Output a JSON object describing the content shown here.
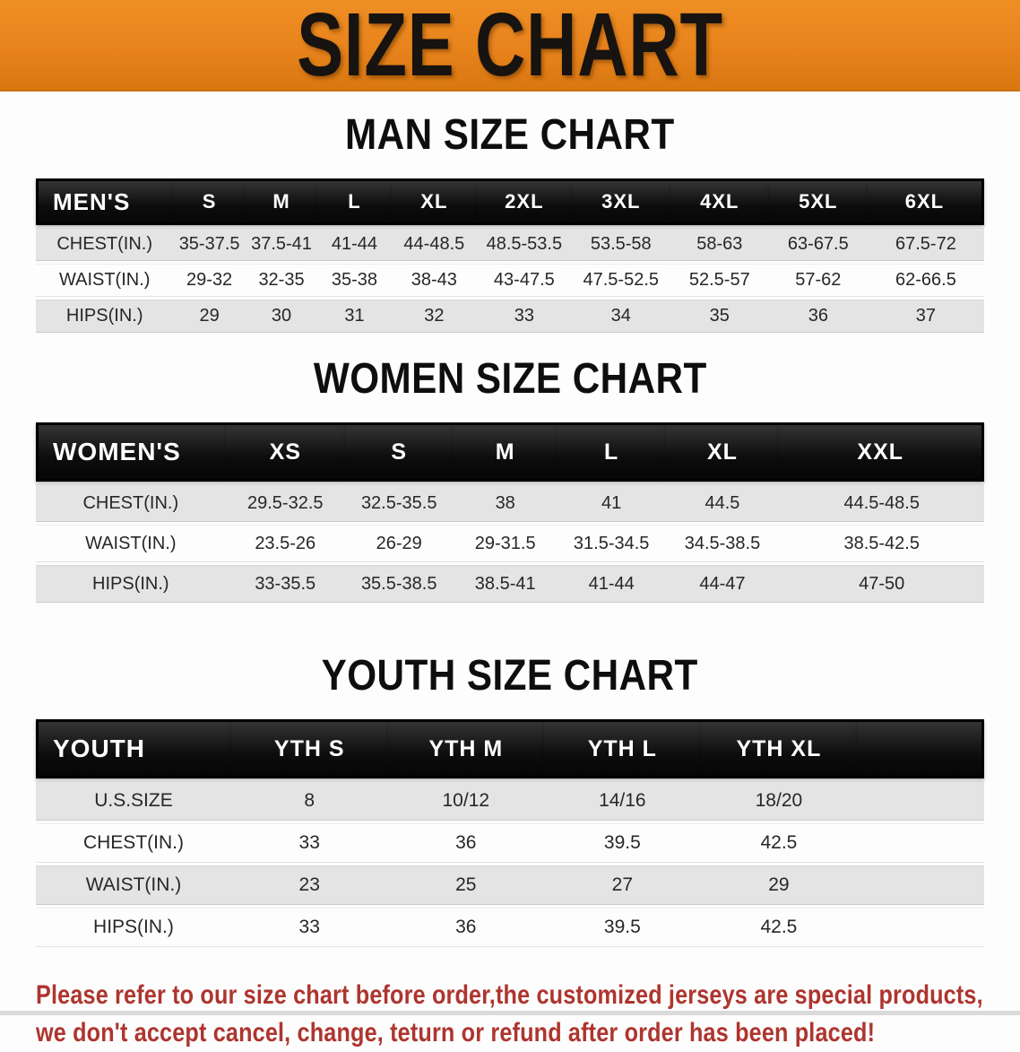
{
  "banner": {
    "title": "SIZE CHART"
  },
  "colors": {
    "banner_orange": "#e8831c",
    "header_black": "#0d0d0d",
    "row_gray": "#e4e4e4",
    "notice_red": "#ae352f"
  },
  "chart_data": [
    {
      "type": "table",
      "title": "MAN SIZE CHART",
      "columns": [
        "MEN'S",
        "S",
        "M",
        "L",
        "XL",
        "2XL",
        "3XL",
        "4XL",
        "5XL",
        "6XL"
      ],
      "rows": [
        [
          "CHEST(IN.)",
          "35-37.5",
          "37.5-41",
          "41-44",
          "44-48.5",
          "48.5-53.5",
          "53.5-58",
          "58-63",
          "63-67.5",
          "67.5-72"
        ],
        [
          "WAIST(IN.)",
          "29-32",
          "32-35",
          "35-38",
          "38-43",
          "43-47.5",
          "47.5-52.5",
          "52.5-57",
          "57-62",
          "62-66.5"
        ],
        [
          "HIPS(IN.)",
          "29",
          "30",
          "31",
          "32",
          "33",
          "34",
          "35",
          "36",
          "37"
        ]
      ]
    },
    {
      "type": "table",
      "title": "WOMEN SIZE CHART",
      "columns": [
        "WOMEN'S",
        "XS",
        "S",
        "M",
        "L",
        "XL",
        "XXL"
      ],
      "rows": [
        [
          "CHEST(IN.)",
          "29.5-32.5",
          "32.5-35.5",
          "38",
          "41",
          "44.5",
          "44.5-48.5"
        ],
        [
          "WAIST(IN.)",
          "23.5-26",
          "26-29",
          "29-31.5",
          "31.5-34.5",
          "34.5-38.5",
          "38.5-42.5"
        ],
        [
          "HIPS(IN.)",
          "33-35.5",
          "35.5-38.5",
          "38.5-41",
          "41-44",
          "44-47",
          "47-50"
        ]
      ]
    },
    {
      "type": "table",
      "title": "YOUTH SIZE CHART",
      "columns": [
        "YOUTH",
        "YTH S",
        "YTH M",
        "YTH L",
        "YTH XL"
      ],
      "rows": [
        [
          "U.S.SIZE",
          "8",
          "10/12",
          "14/16",
          "18/20"
        ],
        [
          "CHEST(IN.)",
          "33",
          "36",
          "39.5",
          "42.5"
        ],
        [
          "WAIST(IN.)",
          "23",
          "25",
          "27",
          "29"
        ],
        [
          "HIPS(IN.)",
          "33",
          "36",
          "39.5",
          "42.5"
        ]
      ]
    }
  ],
  "footer": {
    "line1": "Please refer to our size chart before order,the customized jerseys are special products,",
    "line2": "we don't accept cancel, change, teturn or refund after order has been placed!"
  }
}
